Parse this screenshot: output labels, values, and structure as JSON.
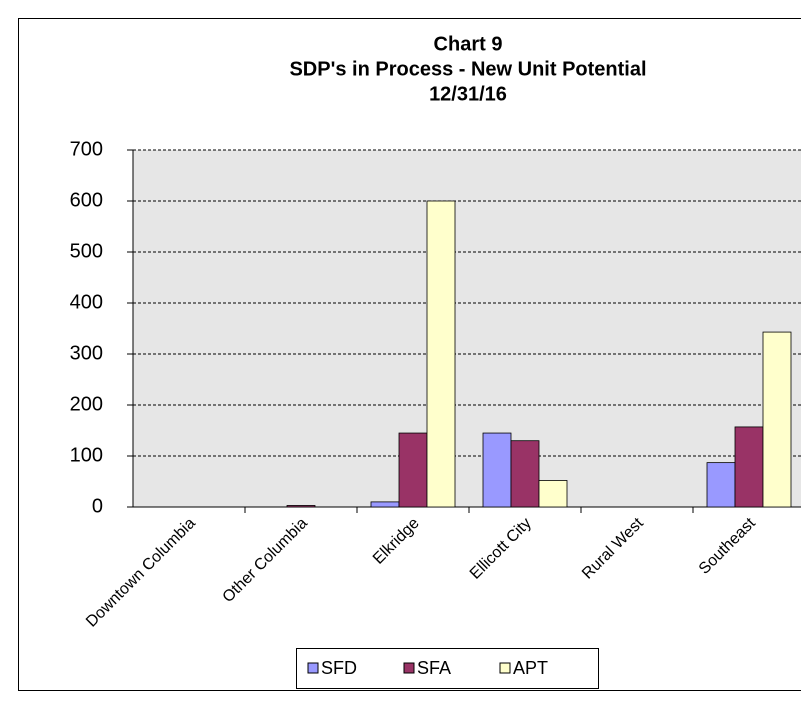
{
  "chart_data": {
    "type": "bar",
    "title": [
      "Chart 9",
      "SDP's in Process - New Unit Potential",
      "12/31/16"
    ],
    "categories": [
      "Downtown Columbia",
      "Other Columbia",
      "Elkridge",
      "Ellicott City",
      "Rural West",
      "Southeast"
    ],
    "series": [
      {
        "name": "SFD",
        "color": "#9999ff",
        "values": [
          0,
          0,
          10,
          145,
          0,
          87
        ]
      },
      {
        "name": "SFA",
        "color": "#993366",
        "values": [
          0,
          3,
          145,
          130,
          0,
          157
        ]
      },
      {
        "name": "APT",
        "color": "#ffffcc",
        "values": [
          0,
          0,
          600,
          52,
          0,
          343
        ]
      }
    ],
    "ylim": [
      0,
      700
    ],
    "yticks": [
      0,
      100,
      200,
      300,
      400,
      500,
      600,
      700
    ],
    "grid": true,
    "legend": "bottom"
  }
}
